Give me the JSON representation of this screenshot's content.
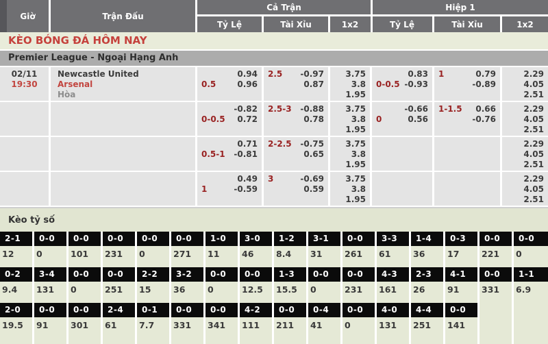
{
  "colors": {
    "banner_red": "#c5413c",
    "handicap_maroon": "#992222",
    "highlight_red": "#c2453f",
    "score_cell_black": "#0b0b0b",
    "section_green": "#e1e5d1"
  },
  "header": {
    "col_time": "Giờ",
    "col_match": "Trận Đấu",
    "group_fulltime": "Cả Trận",
    "group_firsthalf": "Hiệp 1",
    "sub_handicap": "Tỷ Lệ",
    "sub_overunder": "Tài Xỉu",
    "sub_1x2": "1x2"
  },
  "banner": {
    "title": "KÈO BÓNG ĐÁ HÔM NAY"
  },
  "league": {
    "name": "Premier League - Ngoại Hạng Anh"
  },
  "match": {
    "date": "02/11",
    "time": "19:30",
    "home": "Newcastle United",
    "away": "Arsenal",
    "draw": "Hòa"
  },
  "odds_rows": [
    {
      "ft_hdp": {
        "top_right": "0.94",
        "bottom_left": "0.5",
        "bottom_right": "0.96"
      },
      "ft_ou": {
        "top_left": "2.5",
        "top_right": "-0.97",
        "bottom_right": "0.87"
      },
      "ft_1x2": [
        "3.75",
        "3.8",
        "1.95"
      ],
      "h1_hdp": {
        "top_right": "0.83",
        "bottom_left": "0-0.5",
        "bottom_right": "-0.93"
      },
      "h1_ou": {
        "top_left": "1",
        "top_right": "0.79",
        "bottom_right": "-0.89"
      },
      "h1_1x2": [
        "2.29",
        "4.05",
        "2.51"
      ]
    },
    {
      "ft_hdp": {
        "top_right": "-0.82",
        "bottom_left": "0-0.5",
        "bottom_right": "0.72"
      },
      "ft_ou": {
        "top_left": "2.5-3",
        "top_right": "-0.88",
        "bottom_right": "0.78"
      },
      "ft_1x2": [
        "3.75",
        "3.8",
        "1.95"
      ],
      "h1_hdp": {
        "top_right": "-0.66",
        "bottom_left": "0",
        "bottom_right": "0.56"
      },
      "h1_ou": {
        "top_left": "1-1.5",
        "top_right": "0.66",
        "bottom_right": "-0.76"
      },
      "h1_1x2": [
        "2.29",
        "4.05",
        "2.51"
      ]
    },
    {
      "ft_hdp": {
        "top_right": "0.71",
        "bottom_left": "0.5-1",
        "bottom_right": "-0.81"
      },
      "ft_ou": {
        "top_left": "2-2.5",
        "top_right": "-0.75",
        "bottom_right": "0.65"
      },
      "ft_1x2": [
        "3.75",
        "3.8",
        "1.95"
      ],
      "h1_hdp": {},
      "h1_ou": {},
      "h1_1x2": [
        "2.29",
        "4.05",
        "2.51"
      ]
    },
    {
      "ft_hdp": {
        "top_right": "0.49",
        "bottom_left": "1",
        "bottom_right": "-0.59"
      },
      "ft_ou": {
        "top_left": "3",
        "top_right": "-0.69",
        "bottom_right": "0.59"
      },
      "ft_1x2": [
        "3.75",
        "3.8",
        "1.95"
      ],
      "h1_hdp": {},
      "h1_ou": {},
      "h1_1x2": [
        "2.29",
        "4.05",
        "2.51"
      ]
    }
  ],
  "score_board": {
    "title": "Kèo tỷ số",
    "rows": [
      [
        {
          "score": "2-1",
          "value": "12"
        },
        {
          "score": "0-0",
          "value": "0"
        },
        {
          "score": "0-0",
          "value": "101"
        },
        {
          "score": "0-0",
          "value": "231"
        },
        {
          "score": "0-0",
          "value": "0"
        },
        {
          "score": "0-0",
          "value": "271"
        },
        {
          "score": "1-0",
          "value": "11"
        },
        {
          "score": "3-0",
          "value": "46"
        },
        {
          "score": "1-2",
          "value": "8.4"
        },
        {
          "score": "3-1",
          "value": "31"
        },
        {
          "score": "0-0",
          "value": "261"
        },
        {
          "score": "3-3",
          "value": "61"
        },
        {
          "score": "1-4",
          "value": "36"
        },
        {
          "score": "0-3",
          "value": "17"
        },
        {
          "score": "0-0",
          "value": "221"
        },
        {
          "score": "0-0",
          "value": "0"
        }
      ],
      [
        {
          "score": "0-2",
          "value": "9.4"
        },
        {
          "score": "3-4",
          "value": "131"
        },
        {
          "score": "0-0",
          "value": "0"
        },
        {
          "score": "0-0",
          "value": "251"
        },
        {
          "score": "2-2",
          "value": "15"
        },
        {
          "score": "3-2",
          "value": "36"
        },
        {
          "score": "0-0",
          "value": "0"
        },
        {
          "score": "0-0",
          "value": "12.5"
        },
        {
          "score": "1-3",
          "value": "15.5"
        },
        {
          "score": "0-0",
          "value": "0"
        },
        {
          "score": "0-0",
          "value": "231"
        },
        {
          "score": "4-3",
          "value": "161"
        },
        {
          "score": "2-3",
          "value": "26"
        },
        {
          "score": "4-1",
          "value": "91"
        },
        {
          "score": "0-0",
          "value": "331"
        },
        {
          "score": "1-1",
          "value": "6.9"
        }
      ],
      [
        {
          "score": "2-0",
          "value": "19.5"
        },
        {
          "score": "0-0",
          "value": "91"
        },
        {
          "score": "0-0",
          "value": "301"
        },
        {
          "score": "2-4",
          "value": "61"
        },
        {
          "score": "0-1",
          "value": "7.7"
        },
        {
          "score": "0-0",
          "value": "331"
        },
        {
          "score": "0-0",
          "value": "341"
        },
        {
          "score": "4-2",
          "value": "111"
        },
        {
          "score": "0-0",
          "value": "211"
        },
        {
          "score": "0-4",
          "value": "41"
        },
        {
          "score": "0-0",
          "value": "0"
        },
        {
          "score": "4-0",
          "value": "131"
        },
        {
          "score": "4-4",
          "value": "251"
        },
        {
          "score": "0-0",
          "value": "141"
        },
        null,
        null
      ]
    ]
  }
}
